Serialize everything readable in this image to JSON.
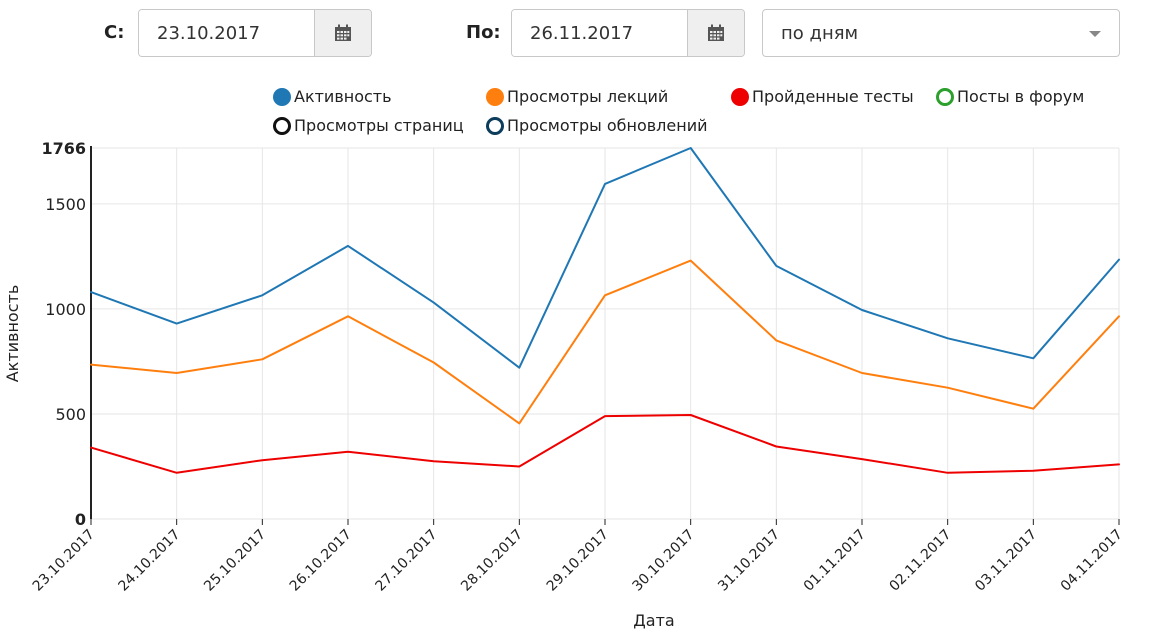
{
  "filters": {
    "from_label": "С:",
    "from_value": "23.10.2017",
    "to_label": "По:",
    "to_value": "26.11.2017",
    "period_value": "по дням"
  },
  "icons": {
    "calendar": "calendar-icon",
    "dropdown": "chevron-down-icon"
  },
  "legend": [
    {
      "label": "Активность",
      "color": "#1f77b4",
      "filled": true
    },
    {
      "label": "Просмотры лекций",
      "color": "#ff7f0e",
      "filled": true
    },
    {
      "label": "Пройденные тесты",
      "color": "#ee0000",
      "filled": true
    },
    {
      "label": "Посты в форум",
      "color": "#2ca02c",
      "filled": false
    },
    {
      "label": "Просмотры страниц",
      "color": "#111111",
      "filled": false
    },
    {
      "label": "Просмотры обновлений",
      "color": "#0d3d5c",
      "filled": false
    }
  ],
  "chart_data": {
    "type": "line",
    "categories": [
      "23.10.2017",
      "24.10.2017",
      "25.10.2017",
      "26.10.2017",
      "27.10.2017",
      "28.10.2017",
      "29.10.2017",
      "30.10.2017",
      "31.10.2017",
      "01.11.2017",
      "02.11.2017",
      "03.11.2017",
      "04.11.2017"
    ],
    "series": [
      {
        "name": "Активность",
        "color": "#1f77b4",
        "values": [
          1080,
          930,
          1065,
          1300,
          1030,
          720,
          1595,
          1766,
          1205,
          995,
          860,
          765,
          1235
        ]
      },
      {
        "name": "Просмотры лекций",
        "color": "#ff7f0e",
        "values": [
          735,
          695,
          760,
          965,
          745,
          455,
          1065,
          1230,
          850,
          695,
          625,
          525,
          965
        ]
      },
      {
        "name": "Пройденные тесты",
        "color": "#ee0000",
        "values": [
          340,
          220,
          280,
          320,
          275,
          250,
          490,
          495,
          345,
          285,
          220,
          230,
          260
        ]
      }
    ],
    "xlabel": "Дата",
    "ylabel": "Активность",
    "ylim": [
      0,
      1766
    ],
    "yticks": [
      0,
      500,
      1000,
      1500,
      1766
    ],
    "grid": true
  }
}
